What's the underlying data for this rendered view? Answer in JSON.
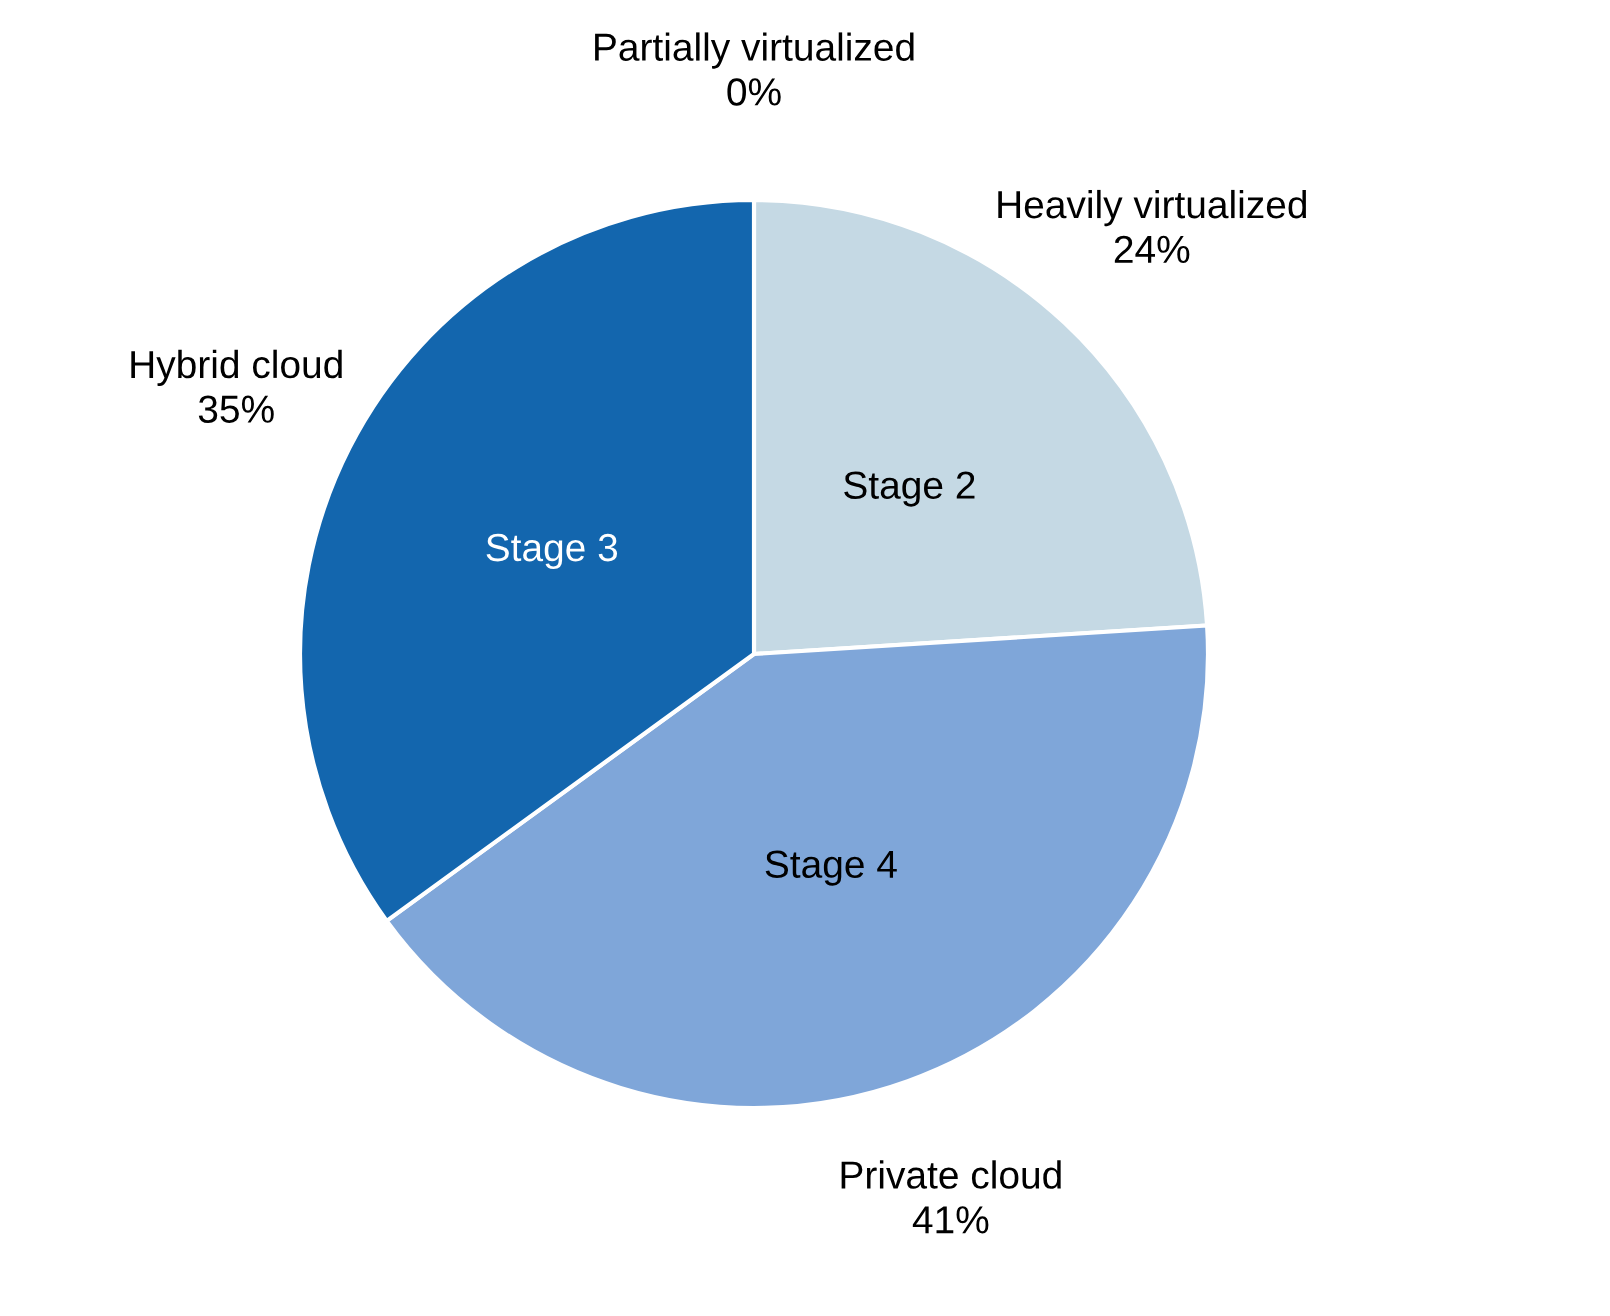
{
  "chart_data": {
    "type": "pie",
    "categories": [
      "Partially virtualized",
      "Heavily virtualized",
      "Private cloud",
      "Hybrid cloud"
    ],
    "values": [
      0,
      24,
      41,
      35
    ],
    "value_labels": [
      "0%",
      "24%",
      "41%",
      "35%"
    ],
    "colors": [
      "#dbe6ef",
      "#c5d9e4",
      "#7fa6d9",
      "#1366ae"
    ],
    "annotations": [
      {
        "text": "Stage 2",
        "x": "Heavily virtualized"
      },
      {
        "text": "Stage 4",
        "x": "Private cloud"
      },
      {
        "text": "Stage 3",
        "x": "Hybrid cloud"
      }
    ]
  }
}
